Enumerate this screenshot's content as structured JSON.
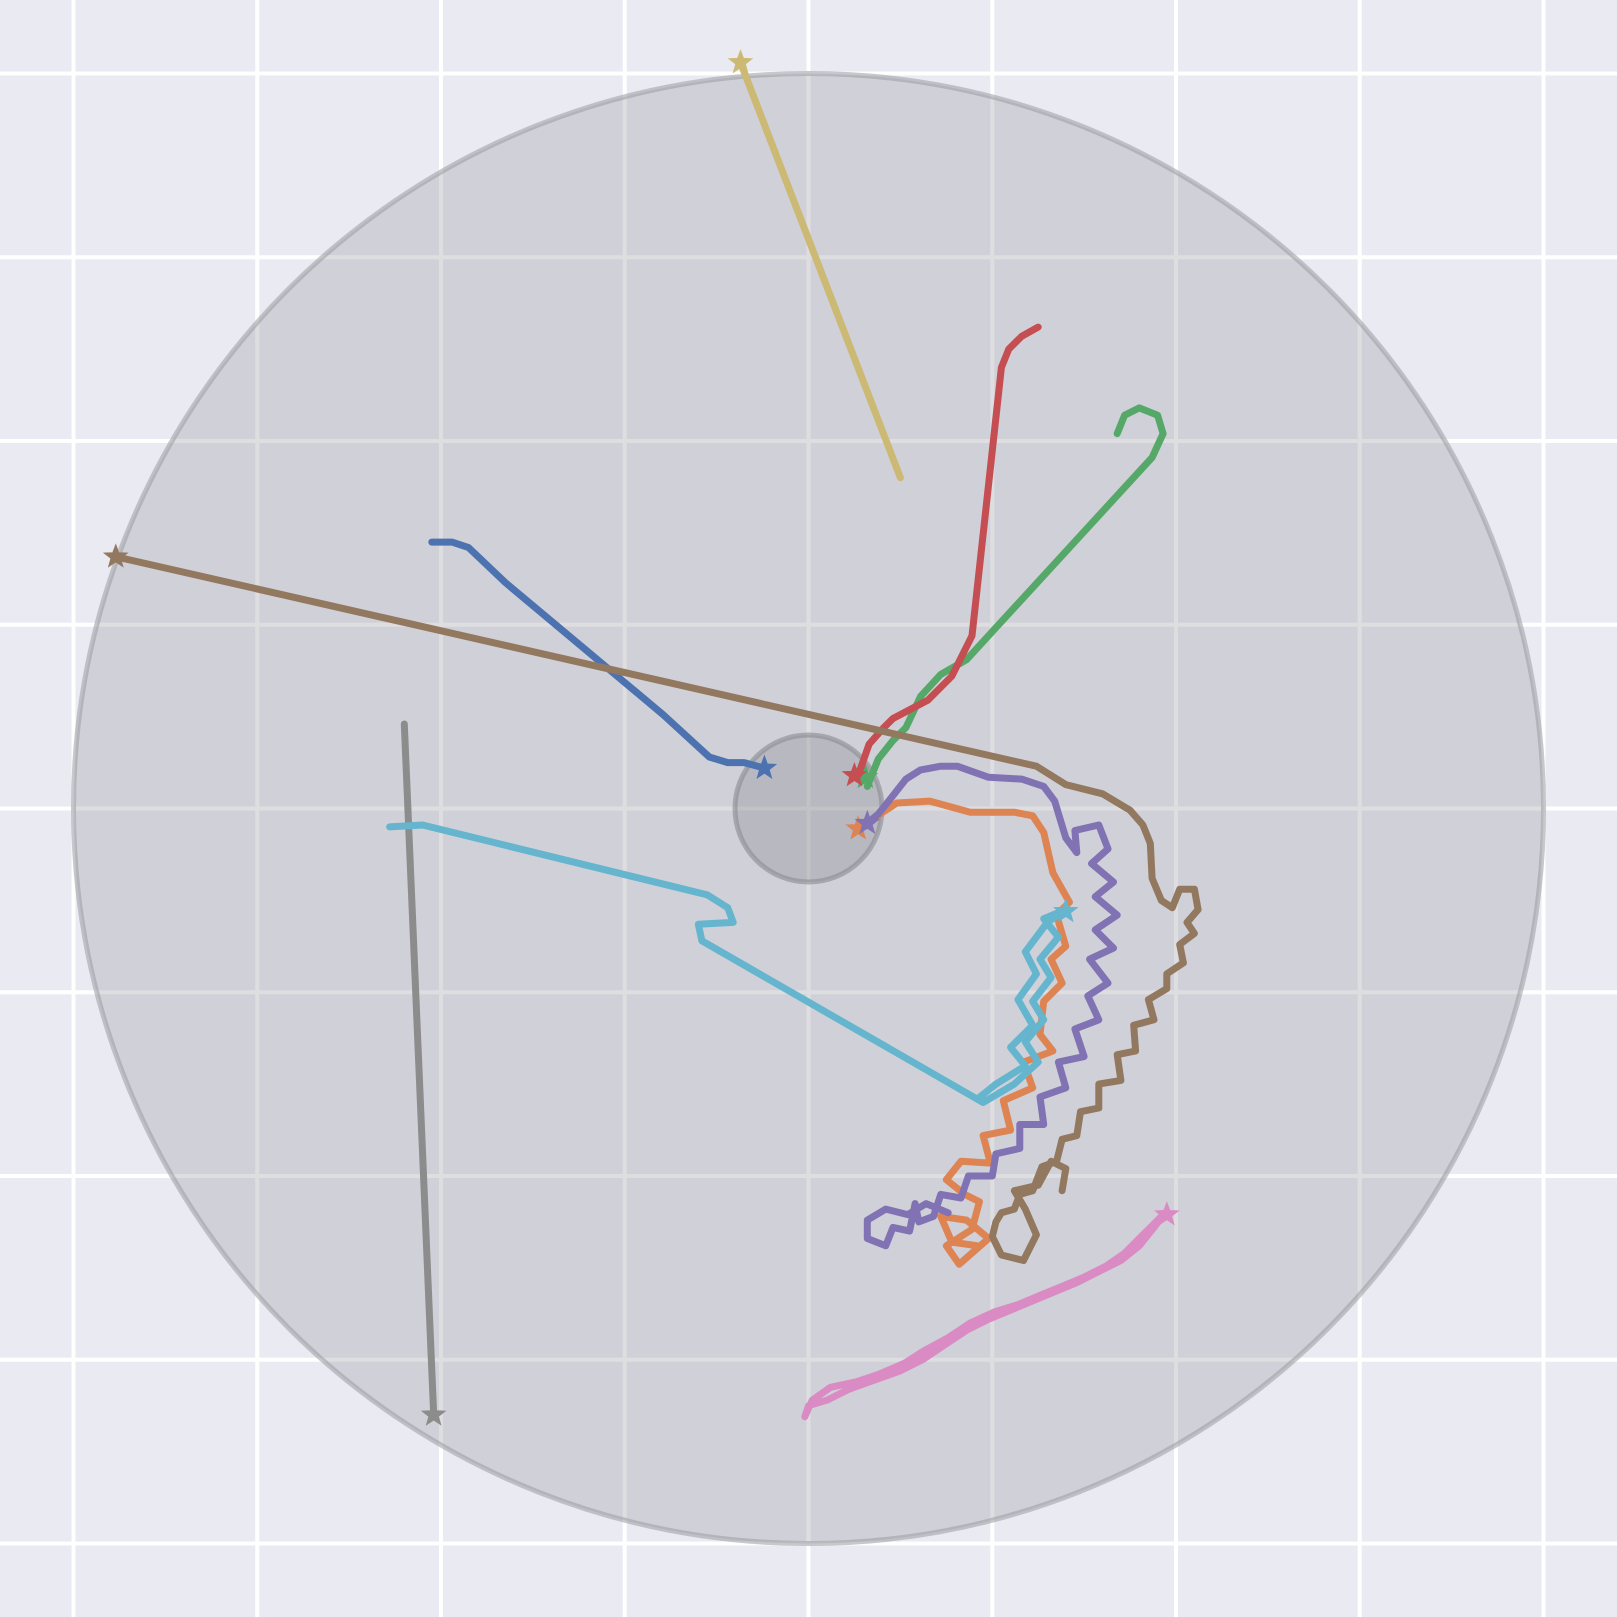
{
  "chart_data": {
    "type": "line",
    "title": "",
    "xlabel": "",
    "ylabel": "",
    "xlim": [
      -0.2,
      8.6
    ],
    "ylim": [
      -0.2,
      8.6
    ],
    "grid": true,
    "gridlines": [
      0.2,
      1.2,
      2.2,
      3.2,
      4.2,
      5.2,
      6.2,
      7.2,
      8.2
    ],
    "background": "#eaeaf2",
    "grid_color": "#ffffff",
    "arena": {
      "center": [
        4.2,
        4.2
      ],
      "radius": 4.0,
      "color": "#a0a0a8",
      "alpha": 0.35
    },
    "target": {
      "center": [
        4.2,
        4.2
      ],
      "radius": 0.4,
      "color": "#8c8c96",
      "alpha": 0.35
    },
    "marker": "star",
    "series": [
      {
        "color": "#4c72b0",
        "points": [
          [
            3.96,
            4.42
          ],
          [
            3.85,
            4.45
          ],
          [
            3.76,
            4.45
          ],
          [
            3.66,
            4.48
          ],
          [
            3.41,
            4.71
          ],
          [
            2.55,
            5.43
          ],
          [
            2.35,
            5.62
          ],
          [
            2.26,
            5.65
          ],
          [
            2.15,
            5.65
          ]
        ],
        "marker_point": [
          3.96,
          4.42
        ]
      },
      {
        "color": "#dd8452",
        "points": [
          [
            4.47,
            4.09
          ],
          [
            4.68,
            4.23
          ],
          [
            4.86,
            4.24
          ],
          [
            5.08,
            4.18
          ],
          [
            5.32,
            4.18
          ],
          [
            5.42,
            4.16
          ],
          [
            5.48,
            4.07
          ],
          [
            5.53,
            3.85
          ],
          [
            5.62,
            3.69
          ],
          [
            5.55,
            3.62
          ],
          [
            5.6,
            3.45
          ],
          [
            5.52,
            3.38
          ],
          [
            5.58,
            3.25
          ],
          [
            5.48,
            3.15
          ],
          [
            5.46,
            2.97
          ],
          [
            5.53,
            2.88
          ],
          [
            5.37,
            2.82
          ],
          [
            5.42,
            2.68
          ],
          [
            5.26,
            2.61
          ],
          [
            5.3,
            2.45
          ],
          [
            5.15,
            2.42
          ],
          [
            5.19,
            2.27
          ],
          [
            5.03,
            2.28
          ],
          [
            4.95,
            2.18
          ],
          [
            5.05,
            2.1
          ],
          [
            5.13,
            2.06
          ],
          [
            5.09,
            1.91
          ],
          [
            4.95,
            1.82
          ],
          [
            5.02,
            1.72
          ],
          [
            5.18,
            1.86
          ],
          [
            5.06,
            1.96
          ],
          [
            4.92,
            1.98
          ],
          [
            4.98,
            1.84
          ],
          [
            5.12,
            1.82
          ]
        ],
        "marker_point": [
          4.47,
          4.09
        ]
      },
      {
        "color": "#55a868",
        "points": [
          [
            4.52,
            4.32
          ],
          [
            4.58,
            4.47
          ],
          [
            4.66,
            4.57
          ],
          [
            4.73,
            4.64
          ],
          [
            4.81,
            4.81
          ],
          [
            4.92,
            4.93
          ],
          [
            5.06,
            5.01
          ],
          [
            6.07,
            6.11
          ],
          [
            6.13,
            6.24
          ],
          [
            6.1,
            6.34
          ],
          [
            6.0,
            6.38
          ],
          [
            5.92,
            6.34
          ],
          [
            5.88,
            6.24
          ]
        ],
        "marker_point": [
          4.51,
          4.37
        ]
      },
      {
        "color": "#c44e52",
        "points": [
          [
            4.47,
            4.38
          ],
          [
            4.53,
            4.55
          ],
          [
            4.61,
            4.64
          ],
          [
            4.66,
            4.69
          ],
          [
            4.85,
            4.79
          ],
          [
            4.98,
            4.92
          ],
          [
            5.09,
            5.14
          ],
          [
            5.25,
            6.6
          ],
          [
            5.29,
            6.7
          ],
          [
            5.36,
            6.77
          ],
          [
            5.45,
            6.82
          ]
        ],
        "marker_point": [
          4.45,
          4.38
        ]
      },
      {
        "color": "#8172b3",
        "points": [
          [
            4.52,
            4.12
          ],
          [
            4.58,
            4.17
          ],
          [
            4.66,
            4.27
          ],
          [
            4.73,
            4.36
          ],
          [
            4.81,
            4.41
          ],
          [
            4.92,
            4.43
          ],
          [
            5.01,
            4.43
          ],
          [
            5.18,
            4.37
          ],
          [
            5.36,
            4.36
          ],
          [
            5.48,
            4.32
          ],
          [
            5.54,
            4.24
          ],
          [
            5.6,
            4.04
          ],
          [
            5.66,
            3.96
          ],
          [
            5.65,
            4.08
          ],
          [
            5.78,
            4.11
          ],
          [
            5.83,
            3.98
          ],
          [
            5.74,
            3.9
          ],
          [
            5.86,
            3.8
          ],
          [
            5.76,
            3.72
          ],
          [
            5.88,
            3.62
          ],
          [
            5.76,
            3.54
          ],
          [
            5.86,
            3.44
          ],
          [
            5.73,
            3.38
          ],
          [
            5.83,
            3.25
          ],
          [
            5.72,
            3.18
          ],
          [
            5.78,
            3.05
          ],
          [
            5.65,
            3.0
          ],
          [
            5.7,
            2.85
          ],
          [
            5.56,
            2.82
          ],
          [
            5.6,
            2.68
          ],
          [
            5.46,
            2.63
          ],
          [
            5.48,
            2.48
          ],
          [
            5.35,
            2.48
          ],
          [
            5.35,
            2.35
          ],
          [
            5.22,
            2.32
          ],
          [
            5.2,
            2.2
          ],
          [
            5.07,
            2.2
          ],
          [
            5.03,
            2.08
          ],
          [
            4.92,
            2.1
          ],
          [
            4.88,
            1.98
          ],
          [
            4.8,
            1.95
          ],
          [
            4.78,
            2.05
          ],
          [
            4.75,
            1.9
          ],
          [
            4.66,
            1.92
          ],
          [
            4.62,
            1.82
          ],
          [
            4.52,
            1.86
          ],
          [
            4.52,
            1.96
          ],
          [
            4.62,
            2.02
          ],
          [
            4.74,
            1.99
          ],
          [
            4.84,
            2.05
          ],
          [
            4.96,
            2.0
          ]
        ],
        "marker_point": [
          4.52,
          4.12
        ]
      },
      {
        "color": "#937860",
        "points": [
          [
            0.43,
            5.57
          ],
          [
            5.44,
            4.43
          ],
          [
            5.6,
            4.33
          ],
          [
            5.8,
            4.28
          ],
          [
            5.95,
            4.19
          ],
          [
            6.02,
            4.11
          ],
          [
            6.06,
            4.01
          ],
          [
            6.07,
            3.82
          ],
          [
            6.12,
            3.7
          ],
          [
            6.18,
            3.66
          ],
          [
            6.22,
            3.76
          ],
          [
            6.3,
            3.76
          ],
          [
            6.32,
            3.65
          ],
          [
            6.26,
            3.58
          ],
          [
            6.3,
            3.52
          ],
          [
            6.22,
            3.46
          ],
          [
            6.24,
            3.36
          ],
          [
            6.15,
            3.3
          ],
          [
            6.15,
            3.22
          ],
          [
            6.05,
            3.16
          ],
          [
            6.08,
            3.05
          ],
          [
            5.97,
            3.02
          ],
          [
            5.98,
            2.88
          ],
          [
            5.88,
            2.86
          ],
          [
            5.9,
            2.72
          ],
          [
            5.78,
            2.7
          ],
          [
            5.78,
            2.57
          ],
          [
            5.68,
            2.55
          ],
          [
            5.66,
            2.42
          ],
          [
            5.58,
            2.4
          ],
          [
            5.55,
            2.28
          ],
          [
            5.47,
            2.25
          ],
          [
            5.42,
            2.12
          ],
          [
            5.35,
            2.1
          ],
          [
            5.32,
            2.02
          ],
          [
            5.25,
            2.0
          ],
          [
            5.22,
            1.95
          ],
          [
            5.2,
            1.87
          ],
          [
            5.25,
            1.77
          ],
          [
            5.37,
            1.74
          ],
          [
            5.44,
            1.88
          ],
          [
            5.38,
            2.02
          ],
          [
            5.32,
            2.12
          ],
          [
            5.45,
            2.15
          ],
          [
            5.52,
            2.28
          ],
          [
            5.6,
            2.24
          ],
          [
            5.58,
            2.12
          ]
        ],
        "marker_point": [
          0.43,
          5.57
        ]
      },
      {
        "color": "#da8bc3",
        "points": [
          [
            4.18,
            0.89
          ],
          [
            4.22,
            0.98
          ],
          [
            4.32,
            1.05
          ],
          [
            4.46,
            1.08
          ],
          [
            4.58,
            1.12
          ],
          [
            4.72,
            1.18
          ],
          [
            4.83,
            1.25
          ],
          [
            4.96,
            1.32
          ],
          [
            5.08,
            1.4
          ],
          [
            5.21,
            1.46
          ],
          [
            5.34,
            1.5
          ],
          [
            5.46,
            1.55
          ],
          [
            5.58,
            1.6
          ],
          [
            5.7,
            1.65
          ],
          [
            5.82,
            1.71
          ],
          [
            5.92,
            1.78
          ],
          [
            6.0,
            1.86
          ],
          [
            6.08,
            1.94
          ],
          [
            6.14,
            2.0
          ],
          [
            6.08,
            1.92
          ],
          [
            6.0,
            1.82
          ],
          [
            5.9,
            1.74
          ],
          [
            5.78,
            1.68
          ],
          [
            5.66,
            1.62
          ],
          [
            5.54,
            1.57
          ],
          [
            5.42,
            1.52
          ],
          [
            5.3,
            1.47
          ],
          [
            5.18,
            1.42
          ],
          [
            5.06,
            1.36
          ],
          [
            4.94,
            1.28
          ],
          [
            4.82,
            1.2
          ],
          [
            4.7,
            1.14
          ],
          [
            4.56,
            1.09
          ],
          [
            4.42,
            1.04
          ],
          [
            4.3,
            0.98
          ],
          [
            4.2,
            0.95
          ],
          [
            4.18,
            0.89
          ]
        ],
        "marker_point": [
          6.15,
          1.99
        ]
      },
      {
        "color": "#8c8c8c",
        "points": [
          [
            2.16,
            0.9
          ],
          [
            2.0,
            4.66
          ]
        ],
        "marker_point": [
          2.16,
          0.9
        ]
      },
      {
        "color": "#ccb974",
        "points": [
          [
            3.83,
            8.26
          ],
          [
            4.7,
            6.0
          ]
        ],
        "marker_point": [
          3.83,
          8.26
        ]
      },
      {
        "color": "#64b5cd",
        "points": [
          [
            1.92,
            4.1
          ],
          [
            2.1,
            4.11
          ],
          [
            3.65,
            3.73
          ],
          [
            3.76,
            3.66
          ],
          [
            3.79,
            3.58
          ],
          [
            3.6,
            3.57
          ],
          [
            3.62,
            3.48
          ],
          [
            5.15,
            2.6
          ],
          [
            5.32,
            2.7
          ],
          [
            5.45,
            2.82
          ],
          [
            5.38,
            2.93
          ],
          [
            5.48,
            3.05
          ],
          [
            5.42,
            3.15
          ],
          [
            5.52,
            3.28
          ],
          [
            5.46,
            3.38
          ],
          [
            5.56,
            3.5
          ],
          [
            5.48,
            3.6
          ],
          [
            5.6,
            3.65
          ],
          [
            5.5,
            3.58
          ],
          [
            5.38,
            3.42
          ],
          [
            5.44,
            3.3
          ],
          [
            5.34,
            3.16
          ],
          [
            5.42,
            3.02
          ],
          [
            5.3,
            2.9
          ],
          [
            5.38,
            2.8
          ],
          [
            5.22,
            2.7
          ],
          [
            5.12,
            2.62
          ]
        ],
        "marker_point": [
          5.6,
          3.64
        ]
      }
    ]
  }
}
